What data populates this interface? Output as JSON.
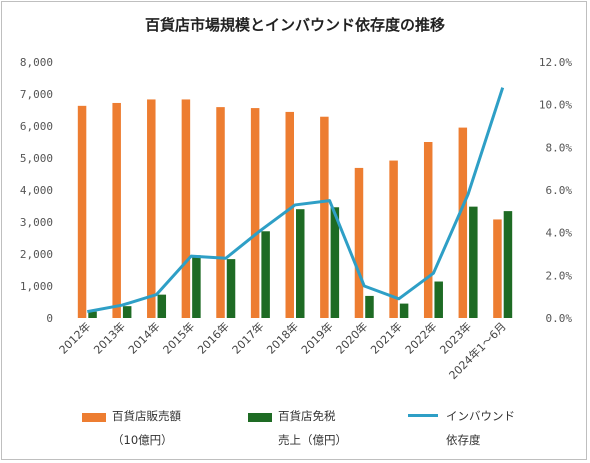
{
  "chart_data": {
    "type": "bar",
    "title": "百貨店市場規模とインバウンド依存度の推移",
    "categories": [
      "2012年",
      "2013年",
      "2014年",
      "2015年",
      "2016年",
      "2017年",
      "2018年",
      "2019年",
      "2020年",
      "2021年",
      "2022年",
      "2023年",
      "2024年1～6月"
    ],
    "left_axis": {
      "ylim": [
        0,
        8000
      ],
      "ticks": [
        "0",
        "1,000",
        "2,000",
        "3,000",
        "4,000",
        "5,000",
        "6,000",
        "7,000",
        "8,000"
      ]
    },
    "right_axis": {
      "ylim": [
        0,
        12
      ],
      "ticks": [
        "0.0%",
        "2.0%",
        "4.0%",
        "6.0%",
        "8.0%",
        "10.0%",
        "12.0%"
      ]
    },
    "grid": false,
    "legend_position": "bottom",
    "series": [
      {
        "name": "百貨店販売額",
        "name_line2": "（10億円）",
        "type": "bar",
        "axis": "left",
        "color": "#ed7d31",
        "values": [
          6630,
          6720,
          6830,
          6830,
          6590,
          6560,
          6440,
          6290,
          4690,
          4920,
          5500,
          5950,
          3080
        ]
      },
      {
        "name": "百貨店免税",
        "name_line2": "売上（億円）",
        "type": "bar",
        "axis": "left",
        "color": "#1e6b24",
        "values": [
          200,
          370,
          730,
          1960,
          1840,
          2710,
          3400,
          3460,
          690,
          450,
          1140,
          3480,
          3340
        ]
      },
      {
        "name": "インバウンド",
        "name_line2": "依存度",
        "type": "line",
        "axis": "right",
        "color": "#2e9fc6",
        "values": [
          0.3,
          0.6,
          1.1,
          2.9,
          2.8,
          4.1,
          5.3,
          5.5,
          1.5,
          0.9,
          2.1,
          5.8,
          10.8
        ]
      }
    ]
  }
}
